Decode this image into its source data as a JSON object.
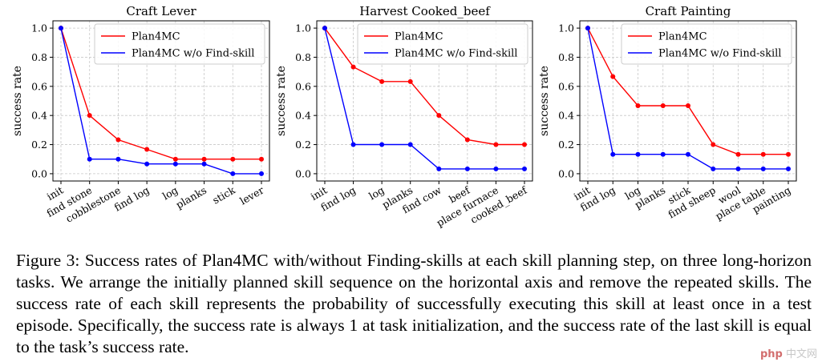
{
  "caption": {
    "text": "Figure 3: Success rates of Plan4MC with/without Finding-skills at each skill planning step, on three long-horizon tasks. We arrange the initially planned skill sequence on the horizontal axis and remove the repeated skills. The success rate of each skill represents the probability of successfully executing this skill at least once in a test episode. Specifically, the success rate is always 1 at task initialization, and the success rate of the last skill is equal to the task’s success rate."
  },
  "watermark": {
    "logo": "php",
    "site": "中文网"
  },
  "colors": {
    "plan4mc": "#ff0000",
    "wo_find": "#0000ff",
    "grid": "#c8c8c8"
  },
  "chart_data": [
    {
      "type": "line",
      "title": "Craft Lever",
      "ylabel": "success rate",
      "xlabel": "",
      "ylim": [
        -0.05,
        1.05
      ],
      "yticks": [
        "0.0",
        "0.2",
        "0.4",
        "0.6",
        "0.8",
        "1.0"
      ],
      "grid": true,
      "legend_placement": "top-right",
      "categories": [
        "init",
        "find stone",
        "cobblestone",
        "find log",
        "log",
        "planks",
        "stick",
        "lever"
      ],
      "series": [
        {
          "name": "Plan4MC",
          "color": "#ff0000",
          "values": [
            1.0,
            0.4,
            0.233,
            0.167,
            0.1,
            0.1,
            0.1,
            0.1
          ]
        },
        {
          "name": "Plan4MC w/o Find-skill",
          "color": "#0000ff",
          "values": [
            1.0,
            0.1,
            0.1,
            0.067,
            0.067,
            0.067,
            0.0,
            0.0
          ]
        }
      ]
    },
    {
      "type": "line",
      "title": "Harvest Cooked_beef",
      "ylabel": "success rate",
      "xlabel": "",
      "ylim": [
        -0.05,
        1.05
      ],
      "yticks": [
        "0.0",
        "0.2",
        "0.4",
        "0.6",
        "0.8",
        "1.0"
      ],
      "grid": true,
      "legend_placement": "top-right",
      "categories": [
        "init",
        "find log",
        "log",
        "planks",
        "find cow",
        "beef",
        "place furnace",
        "cooked_beef"
      ],
      "series": [
        {
          "name": "Plan4MC",
          "color": "#ff0000",
          "values": [
            1.0,
            0.733,
            0.633,
            0.633,
            0.4,
            0.233,
            0.2,
            0.2
          ]
        },
        {
          "name": "Plan4MC w/o Find-skill",
          "color": "#0000ff",
          "values": [
            1.0,
            0.2,
            0.2,
            0.2,
            0.033,
            0.033,
            0.033,
            0.033
          ]
        }
      ]
    },
    {
      "type": "line",
      "title": "Craft Painting",
      "ylabel": "success rate",
      "xlabel": "",
      "ylim": [
        -0.05,
        1.05
      ],
      "yticks": [
        "0.0",
        "0.2",
        "0.4",
        "0.6",
        "0.8",
        "1.0"
      ],
      "grid": true,
      "legend_placement": "top-right",
      "categories": [
        "init",
        "find log",
        "log",
        "planks",
        "stick",
        "find sheep",
        "wool",
        "place table",
        "painting"
      ],
      "series": [
        {
          "name": "Plan4MC",
          "color": "#ff0000",
          "values": [
            1.0,
            0.667,
            0.467,
            0.467,
            0.467,
            0.2,
            0.133,
            0.133,
            0.133
          ]
        },
        {
          "name": "Plan4MC w/o Find-skill",
          "color": "#0000ff",
          "values": [
            1.0,
            0.133,
            0.133,
            0.133,
            0.133,
            0.033,
            0.033,
            0.033,
            0.033
          ]
        }
      ]
    }
  ]
}
